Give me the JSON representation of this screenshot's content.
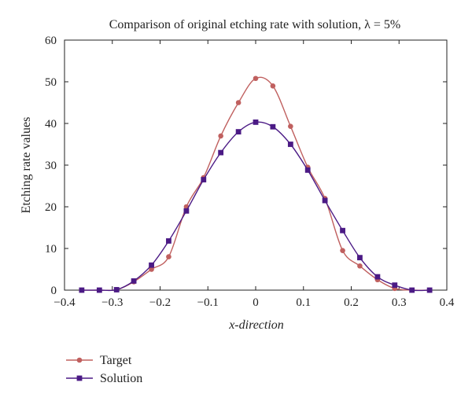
{
  "chart_data": {
    "type": "line",
    "title": "Comparison of original etching rate with solution, λ = 5%",
    "xlabel": "x-direction",
    "ylabel": "Etching rate values",
    "xlim": [
      -0.4,
      0.4
    ],
    "ylim": [
      0,
      60
    ],
    "xticks": [
      "−0.4",
      "−0.3",
      "−0.2",
      "−0.1",
      "0",
      "0.1",
      "0.2",
      "0.3",
      "0.4"
    ],
    "yticks": [
      "0",
      "10",
      "20",
      "30",
      "40",
      "50",
      "60"
    ],
    "grid": false,
    "legend_position": "bottom-left, below plot",
    "series": [
      {
        "name": "Target",
        "color": "#c0605f",
        "marker": "circle",
        "x": [
          -0.364,
          -0.327,
          -0.291,
          -0.255,
          -0.218,
          -0.182,
          -0.145,
          -0.109,
          -0.073,
          -0.036,
          0.0,
          0.036,
          0.073,
          0.109,
          0.145,
          0.182,
          0.218,
          0.255,
          0.291,
          0.327,
          0.364
        ],
        "y": [
          0,
          0,
          0.1,
          2.0,
          5.0,
          8.0,
          20.0,
          27.0,
          37.0,
          45.0,
          50.8,
          49.0,
          39.3,
          29.5,
          22.0,
          9.5,
          5.8,
          2.5,
          0.4,
          0,
          0
        ]
      },
      {
        "name": "Solution",
        "color": "#4b1a85",
        "marker": "square",
        "x": [
          -0.364,
          -0.327,
          -0.291,
          -0.255,
          -0.218,
          -0.182,
          -0.145,
          -0.109,
          -0.073,
          -0.036,
          0.0,
          0.036,
          0.073,
          0.109,
          0.145,
          0.182,
          0.218,
          0.255,
          0.291,
          0.327,
          0.364
        ],
        "y": [
          0,
          0,
          0.1,
          2.2,
          6.0,
          11.8,
          19.0,
          26.5,
          33.0,
          38.0,
          40.3,
          39.2,
          35.0,
          28.8,
          21.5,
          14.3,
          7.8,
          3.2,
          1.2,
          0,
          0
        ]
      }
    ]
  }
}
